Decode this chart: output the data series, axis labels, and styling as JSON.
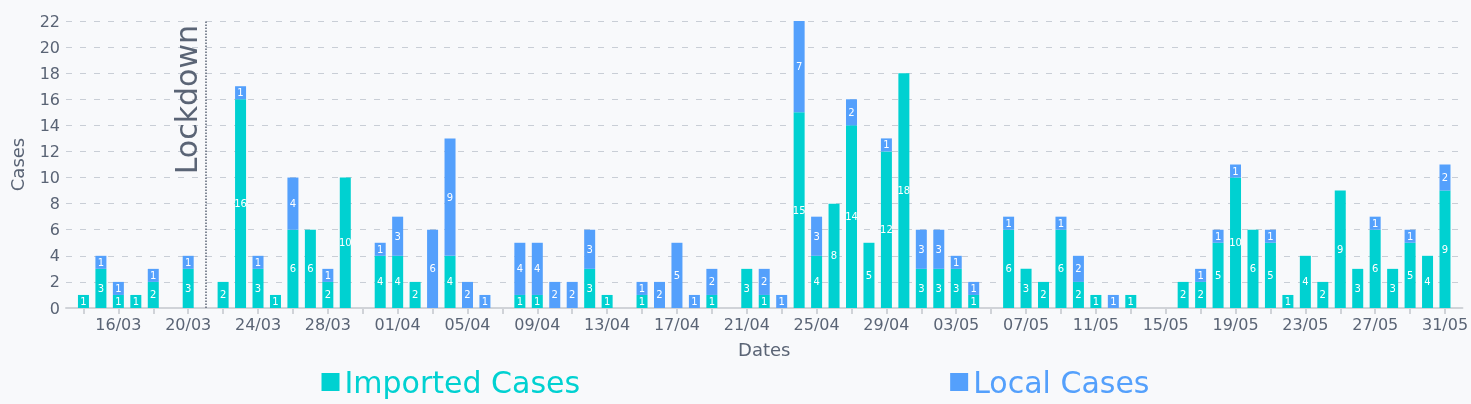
{
  "chart_data": {
    "type": "bar",
    "stacked": true,
    "xlabel": "Dates",
    "ylabel": "Cases",
    "x": [
      "--03-14",
      "--03-15",
      "--03-16",
      "--03-17",
      "--03-18",
      "--03-20",
      "--03-22",
      "--03-23",
      "--03-24",
      "--03-25",
      "--03-26",
      "--03-27",
      "--03-28",
      "--03-29",
      "--03-31",
      "--04-01",
      "--04-02",
      "--04-03",
      "--04-04",
      "--04-05",
      "--04-06",
      "--04-08",
      "--04-09",
      "--04-10",
      "--04-11",
      "--04-12",
      "--04-13",
      "--04-15",
      "--04-16",
      "--04-17",
      "--04-18",
      "--04-19",
      "--04-21",
      "--04-22",
      "--04-23",
      "--04-24",
      "--04-25",
      "--04-26",
      "--04-27",
      "--04-28",
      "--04-29",
      "--04-30",
      "--05-01",
      "--05-02",
      "--05-03",
      "--05-04",
      "--05-06",
      "--05-07",
      "--05-08",
      "--05-09",
      "--05-10",
      "--05-11",
      "--05-12",
      "--05-13",
      "--05-16",
      "--05-17",
      "--05-18",
      "--05-19",
      "--05-20",
      "--05-21",
      "--05-22",
      "--05-23",
      "--05-24",
      "--05-25",
      "--05-26",
      "--05-27",
      "--05-28",
      "--05-29",
      "--05-30",
      "--05-31"
    ],
    "series": [
      {
        "name": "Imported Cases",
        "color": "#00d1d1",
        "values": [
          1,
          3,
          1,
          1,
          2,
          3,
          2,
          16,
          3,
          1,
          6,
          6,
          2,
          10,
          4,
          4,
          2,
          null,
          4,
          null,
          null,
          1,
          1,
          null,
          null,
          3,
          1,
          1,
          null,
          null,
          null,
          1,
          3,
          1,
          null,
          15,
          4,
          8,
          14,
          5,
          12,
          18,
          3,
          3,
          3,
          1,
          6,
          3,
          2,
          6,
          2,
          1,
          null,
          1,
          2,
          2,
          5,
          10,
          6,
          5,
          1,
          4,
          2,
          9,
          3,
          6,
          3,
          5,
          4,
          9
        ]
      },
      {
        "name": "Local Cases",
        "color": "#54a0fc",
        "values": [
          null,
          1,
          1,
          null,
          1,
          1,
          null,
          1,
          1,
          null,
          4,
          null,
          1,
          null,
          1,
          3,
          null,
          6,
          9,
          2,
          1,
          4,
          4,
          2,
          2,
          3,
          null,
          1,
          2,
          5,
          1,
          2,
          null,
          2,
          1,
          7,
          3,
          null,
          2,
          null,
          1,
          null,
          3,
          3,
          1,
          1,
          1,
          null,
          null,
          1,
          2,
          null,
          1,
          null,
          null,
          1,
          1,
          1,
          null,
          1,
          null,
          null,
          null,
          null,
          null,
          1,
          null,
          1,
          null,
          2
        ]
      }
    ],
    "data_labels": true,
    "xlim": [
      "--03-13",
      "--06-01"
    ],
    "xticks": [
      {
        "value": "--03-14",
        "label": null
      },
      {
        "value": "--03-16",
        "label": "16/03"
      },
      {
        "value": "--03-18",
        "label": null
      },
      {
        "value": "--03-20",
        "label": "20/03"
      },
      {
        "value": "--03-22",
        "label": null
      },
      {
        "value": "--03-24",
        "label": "24/03"
      },
      {
        "value": "--03-26",
        "label": null
      },
      {
        "value": "--03-28",
        "label": "28/03"
      },
      {
        "value": "--03-30",
        "label": null
      },
      {
        "value": "--04-01",
        "label": "01/04"
      },
      {
        "value": "--04-03",
        "label": null
      },
      {
        "value": "--04-05",
        "label": "05/04"
      },
      {
        "value": "--04-07",
        "label": null
      },
      {
        "value": "--04-09",
        "label": "09/04"
      },
      {
        "value": "--04-11",
        "label": null
      },
      {
        "value": "--04-13",
        "label": "13/04"
      },
      {
        "value": "--04-15",
        "label": null
      },
      {
        "value": "--04-17",
        "label": "17/04"
      },
      {
        "value": "--04-19",
        "label": null
      },
      {
        "value": "--04-21",
        "label": "21/04"
      },
      {
        "value": "--04-23",
        "label": null
      },
      {
        "value": "--04-25",
        "label": "25/04"
      },
      {
        "value": "--04-27",
        "label": null
      },
      {
        "value": "--04-29",
        "label": "29/04"
      },
      {
        "value": "--05-01",
        "label": null
      },
      {
        "value": "--05-03",
        "label": "03/05"
      },
      {
        "value": "--05-05",
        "label": null
      },
      {
        "value": "--05-07",
        "label": "07/05"
      },
      {
        "value": "--05-09",
        "label": null
      },
      {
        "value": "--05-11",
        "label": "11/05"
      },
      {
        "value": "--05-13",
        "label": null
      },
      {
        "value": "--05-15",
        "label": "15/05"
      },
      {
        "value": "--05-17",
        "label": null
      },
      {
        "value": "--05-19",
        "label": "19/05"
      },
      {
        "value": "--05-21",
        "label": null
      },
      {
        "value": "--05-23",
        "label": "23/05"
      },
      {
        "value": "--05-25",
        "label": null
      },
      {
        "value": "--05-27",
        "label": "27/05"
      },
      {
        "value": "--05-29",
        "label": null
      },
      {
        "value": "--05-31",
        "label": "31/05"
      }
    ],
    "ylim": [
      0,
      22
    ],
    "yticks": [
      0,
      2,
      4,
      6,
      8,
      10,
      12,
      14,
      16,
      18,
      20,
      22
    ],
    "grid": "y",
    "legend": "bottom",
    "ref_lines": [
      {
        "axis": "x",
        "value": "--03-21",
        "label": "Lockdown",
        "color": "#5a6475",
        "line_style": "dotted"
      }
    ]
  }
}
